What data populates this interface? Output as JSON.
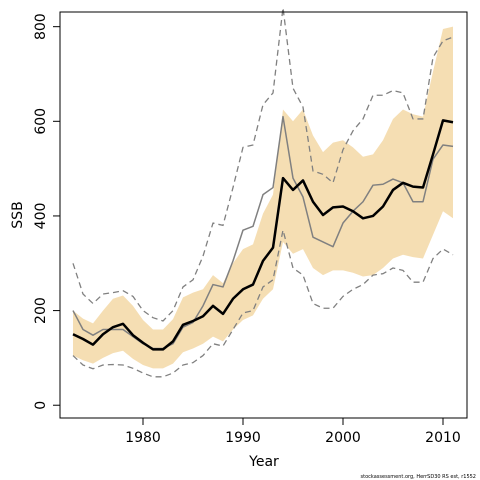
{
  "chart_data": {
    "type": "line",
    "xlabel": "Year",
    "ylabel": "SSB",
    "footnote": "stockassessment.org, HerrSD30 RS est, r1552",
    "x": [
      1973,
      1974,
      1975,
      1976,
      1977,
      1978,
      1979,
      1980,
      1981,
      1982,
      1983,
      1984,
      1985,
      1986,
      1987,
      1988,
      1989,
      1990,
      1991,
      1992,
      1993,
      1994,
      1995,
      1996,
      1997,
      1998,
      1999,
      2000,
      2001,
      2002,
      2003,
      2004,
      2005,
      2006,
      2007,
      2008,
      2009,
      2010,
      2011
    ],
    "band": {
      "color": "#f5deb3",
      "upper": [
        200,
        183,
        173,
        200,
        225,
        232,
        210,
        180,
        160,
        160,
        182,
        228,
        238,
        245,
        275,
        258,
        300,
        330,
        340,
        405,
        445,
        625,
        600,
        625,
        570,
        535,
        555,
        560,
        545,
        525,
        530,
        560,
        605,
        625,
        615,
        610,
        705,
        795,
        800
      ],
      "lower": [
        105,
        95,
        88,
        100,
        110,
        115,
        98,
        85,
        78,
        78,
        88,
        112,
        120,
        130,
        145,
        135,
        160,
        180,
        190,
        225,
        245,
        345,
        320,
        330,
        290,
        275,
        285,
        285,
        280,
        272,
        275,
        290,
        310,
        318,
        313,
        310,
        360,
        410,
        395
      ]
    },
    "series": [
      {
        "color": "#808080",
        "dash": "6,4",
        "width": 1.3,
        "values": [
          300,
          235,
          215,
          235,
          238,
          242,
          230,
          200,
          185,
          178,
          200,
          250,
          265,
          315,
          385,
          380,
          460,
          545,
          550,
          635,
          660,
          840,
          670,
          630,
          495,
          488,
          470,
          540,
          580,
          605,
          655,
          655,
          665,
          660,
          605,
          605,
          735,
          770,
          778
        ]
      },
      {
        "color": "#808080",
        "dash": "6,4",
        "width": 1.3,
        "values": [
          105,
          85,
          77,
          85,
          86,
          85,
          78,
          68,
          60,
          60,
          68,
          85,
          90,
          105,
          130,
          125,
          160,
          195,
          200,
          250,
          265,
          370,
          290,
          275,
          215,
          205,
          205,
          230,
          245,
          255,
          275,
          278,
          290,
          285,
          260,
          260,
          310,
          330,
          318
        ]
      },
      {
        "color": "#808080",
        "width": 1.5,
        "values": [
          200,
          160,
          148,
          160,
          160,
          160,
          145,
          130,
          120,
          120,
          130,
          165,
          175,
          210,
          255,
          250,
          305,
          370,
          378,
          445,
          460,
          610,
          480,
          440,
          355,
          345,
          335,
          385,
          410,
          430,
          465,
          467,
          478,
          470,
          430,
          430,
          520,
          550,
          547
        ]
      },
      {
        "color": "#000000",
        "width": 2.5,
        "values": [
          150,
          140,
          128,
          150,
          165,
          172,
          148,
          132,
          118,
          118,
          135,
          170,
          178,
          188,
          210,
          193,
          225,
          245,
          255,
          305,
          333,
          480,
          455,
          475,
          430,
          402,
          418,
          420,
          410,
          395,
          400,
          420,
          455,
          470,
          462,
          460,
          530,
          602,
          598
        ]
      }
    ],
    "xlim": [
      1971.7,
      2012.4
    ],
    "ylim": [
      -27,
      831
    ],
    "xticks": [
      1980,
      1990,
      2000,
      2010
    ],
    "yticks": [
      0,
      200,
      400,
      600,
      800
    ]
  }
}
